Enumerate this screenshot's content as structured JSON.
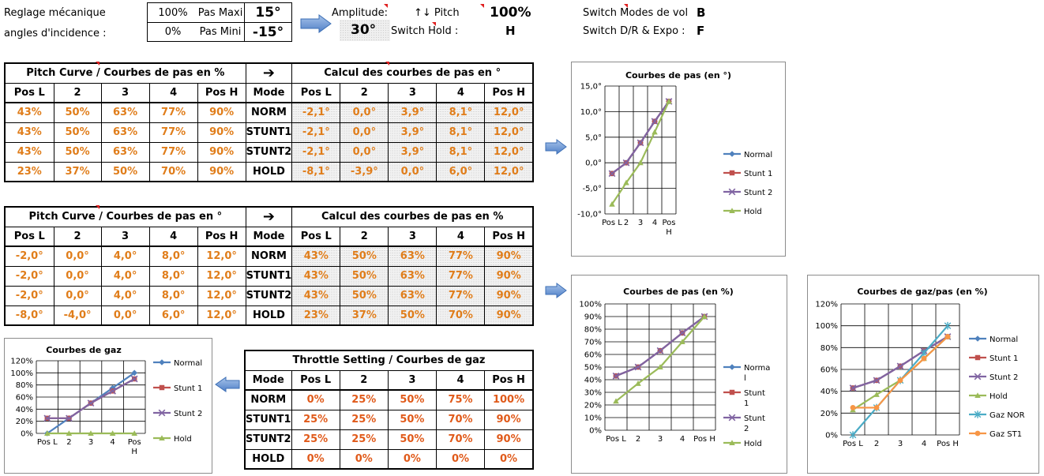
{
  "header": {
    "reglage_label": "Reglage mécanique",
    "angles_label": "angles d'incidence :",
    "pct_max": "100%",
    "pas_maxi_label": "Pas Maxi",
    "pas_maxi_val": "15°",
    "pct_min": "0%",
    "pas_mini_label": "Pas Mini",
    "pas_mini_val": "-15°",
    "amplitude_label": "Amplitude:",
    "amplitude_val": "30°",
    "pitch_label": "↑↓ Pitch",
    "pitch_val": "100%",
    "switch_hold_label": "Switch Hold :",
    "switch_hold_val": "H",
    "switch_modes_label": "Switch Modes de vol",
    "switch_modes_val": "B",
    "switch_dr_label": "Switch D/R & Expo :",
    "switch_dr_val": "F"
  },
  "table1": {
    "title_left": "Pitch Curve / Courbes de pas en %",
    "arrow": "➔",
    "title_right": "Calcul des courbes de pas en °",
    "headers": [
      "Pos L",
      "2",
      "3",
      "4",
      "Pos H",
      "Mode",
      "Pos L",
      "2",
      "3",
      "4",
      "Pos H"
    ],
    "rows": [
      [
        "43%",
        "50%",
        "63%",
        "77%",
        "90%",
        "NORM",
        "-2,1°",
        "0,0°",
        "3,9°",
        "8,1°",
        "12,0°"
      ],
      [
        "43%",
        "50%",
        "63%",
        "77%",
        "90%",
        "STUNT1",
        "-2,1°",
        "0,0°",
        "3,9°",
        "8,1°",
        "12,0°"
      ],
      [
        "43%",
        "50%",
        "63%",
        "77%",
        "90%",
        "STUNT2",
        "-2,1°",
        "0,0°",
        "3,9°",
        "8,1°",
        "12,0°"
      ],
      [
        "23%",
        "37%",
        "50%",
        "70%",
        "90%",
        "HOLD",
        "-8,1°",
        "-3,9°",
        "0,0°",
        "6,0°",
        "12,0°"
      ]
    ]
  },
  "table2": {
    "title_left": "Pitch Curve / Courbes de pas en °",
    "arrow": "➔",
    "title_right": "Calcul des courbes de pas en %",
    "headers": [
      "Pos L",
      "2",
      "3",
      "4",
      "Pos H",
      "Mode",
      "Pos L",
      "2",
      "3",
      "4",
      "Pos H"
    ],
    "rows": [
      [
        "-2,0°",
        "0,0°",
        "4,0°",
        "8,0°",
        "12,0°",
        "NORM",
        "43%",
        "50%",
        "63%",
        "77%",
        "90%"
      ],
      [
        "-2,0°",
        "0,0°",
        "4,0°",
        "8,0°",
        "12,0°",
        "STUNT1",
        "43%",
        "50%",
        "63%",
        "77%",
        "90%"
      ],
      [
        "-2,0°",
        "0,0°",
        "4,0°",
        "8,0°",
        "12,0°",
        "STUNT2",
        "43%",
        "50%",
        "63%",
        "77%",
        "90%"
      ],
      [
        "-8,0°",
        "-4,0°",
        "0,0°",
        "6,0°",
        "12,0°",
        "HOLD",
        "23%",
        "37%",
        "50%",
        "70%",
        "90%"
      ]
    ]
  },
  "table3": {
    "title": "Throttle Setting / Courbes de gaz",
    "headers": [
      "Mode",
      "Pos L",
      "2",
      "3",
      "4",
      "Pos H"
    ],
    "rows": [
      [
        "NORM",
        "0%",
        "25%",
        "50%",
        "75%",
        "100%"
      ],
      [
        "STUNT1",
        "25%",
        "25%",
        "50%",
        "70%",
        "90%"
      ],
      [
        "STUNT2",
        "25%",
        "25%",
        "50%",
        "70%",
        "90%"
      ],
      [
        "HOLD",
        "0%",
        "0%",
        "0%",
        "0%",
        "0%"
      ]
    ]
  },
  "colors": {
    "normal": "#4f81bd",
    "stunt1": "#c0504d",
    "stunt2": "#8064a2",
    "hold": "#9bbb59",
    "gaz_nor": "#4bacc6",
    "gaz_st1": "#f79646"
  },
  "chart_data": [
    {
      "id": "pas_deg",
      "type": "line",
      "title": "Courbes de pas (en °)",
      "categories": [
        "Pos L",
        "2",
        "3",
        "4",
        "Pos H"
      ],
      "ylim": [
        -10,
        15
      ],
      "ystep": 5,
      "ytick_labels": [
        "-10,0°",
        "-5,0°",
        "0,0°",
        "5,0°",
        "10,0°",
        "15,0°"
      ],
      "legend": "right",
      "series": [
        {
          "name": "Normal",
          "values": [
            -2.1,
            0,
            3.9,
            8.1,
            12
          ],
          "color": "#4f81bd",
          "marker": "diamond"
        },
        {
          "name": "Stunt 1",
          "values": [
            -2.1,
            0,
            3.9,
            8.1,
            12
          ],
          "color": "#c0504d",
          "marker": "square"
        },
        {
          "name": "Stunt 2",
          "values": [
            -2.1,
            0,
            3.9,
            8.1,
            12
          ],
          "color": "#8064a2",
          "marker": "x"
        },
        {
          "name": "Hold",
          "values": [
            -8.1,
            -3.9,
            0,
            6,
            12
          ],
          "color": "#9bbb59",
          "marker": "triangle"
        }
      ]
    },
    {
      "id": "pas_pct",
      "type": "line",
      "title": "Courbes de pas (en %)",
      "categories": [
        "Pos L",
        "2",
        "3",
        "4",
        "Pos H"
      ],
      "ylim": [
        0,
        100
      ],
      "ystep": 10,
      "ytick_labels": [
        "0%",
        "10%",
        "20%",
        "30%",
        "40%",
        "50%",
        "60%",
        "70%",
        "80%",
        "90%",
        "100%"
      ],
      "legend": "right",
      "series": [
        {
          "name": "Normal",
          "values": [
            43,
            50,
            63,
            77,
            90
          ],
          "color": "#4f81bd",
          "marker": "diamond"
        },
        {
          "name": "Stunt 1",
          "values": [
            43,
            50,
            63,
            77,
            90
          ],
          "color": "#c0504d",
          "marker": "square"
        },
        {
          "name": "Stunt 2",
          "values": [
            43,
            50,
            63,
            77,
            90
          ],
          "color": "#8064a2",
          "marker": "x"
        },
        {
          "name": "Hold",
          "values": [
            23,
            37,
            50,
            70,
            90
          ],
          "color": "#9bbb59",
          "marker": "triangle"
        }
      ]
    },
    {
      "id": "gaz_pas",
      "type": "line",
      "title": "Courbes de gaz/pas (en %)",
      "categories": [
        "Pos L",
        "2",
        "3",
        "4",
        "Pos H"
      ],
      "ylim": [
        0,
        120
      ],
      "ystep": 20,
      "ytick_labels": [
        "0%",
        "20%",
        "40%",
        "60%",
        "80%",
        "100%",
        "120%"
      ],
      "legend": "right",
      "series": [
        {
          "name": "Normal",
          "values": [
            43,
            50,
            63,
            77,
            90
          ],
          "color": "#4f81bd",
          "marker": "diamond"
        },
        {
          "name": "Stunt 1",
          "values": [
            43,
            50,
            63,
            77,
            90
          ],
          "color": "#c0504d",
          "marker": "square"
        },
        {
          "name": "Stunt 2",
          "values": [
            43,
            50,
            63,
            77,
            90
          ],
          "color": "#8064a2",
          "marker": "x"
        },
        {
          "name": "Hold",
          "values": [
            23,
            37,
            50,
            70,
            90
          ],
          "color": "#9bbb59",
          "marker": "triangle"
        },
        {
          "name": "Gaz NOR",
          "values": [
            0,
            25,
            50,
            75,
            100
          ],
          "color": "#4bacc6",
          "marker": "star"
        },
        {
          "name": "Gaz ST1",
          "values": [
            25,
            25,
            50,
            70,
            90
          ],
          "color": "#f79646",
          "marker": "circle"
        }
      ]
    },
    {
      "id": "gaz",
      "type": "line",
      "title": "Courbes de gaz",
      "categories": [
        "Pos L",
        "2",
        "3",
        "4",
        "Pos H"
      ],
      "ylim": [
        0,
        120
      ],
      "ystep": 20,
      "ytick_labels": [
        "0%",
        "20%",
        "40%",
        "60%",
        "80%",
        "100%",
        "120%"
      ],
      "legend": "right",
      "series": [
        {
          "name": "Normal",
          "values": [
            0,
            25,
            50,
            75,
            100
          ],
          "color": "#4f81bd",
          "marker": "diamond"
        },
        {
          "name": "Stunt 1",
          "values": [
            25,
            25,
            50,
            70,
            90
          ],
          "color": "#c0504d",
          "marker": "square"
        },
        {
          "name": "Stunt 2",
          "values": [
            25,
            25,
            50,
            70,
            90
          ],
          "color": "#8064a2",
          "marker": "x"
        },
        {
          "name": "Hold",
          "values": [
            0,
            0,
            0,
            0,
            0
          ],
          "color": "#9bbb59",
          "marker": "triangle"
        }
      ]
    }
  ]
}
